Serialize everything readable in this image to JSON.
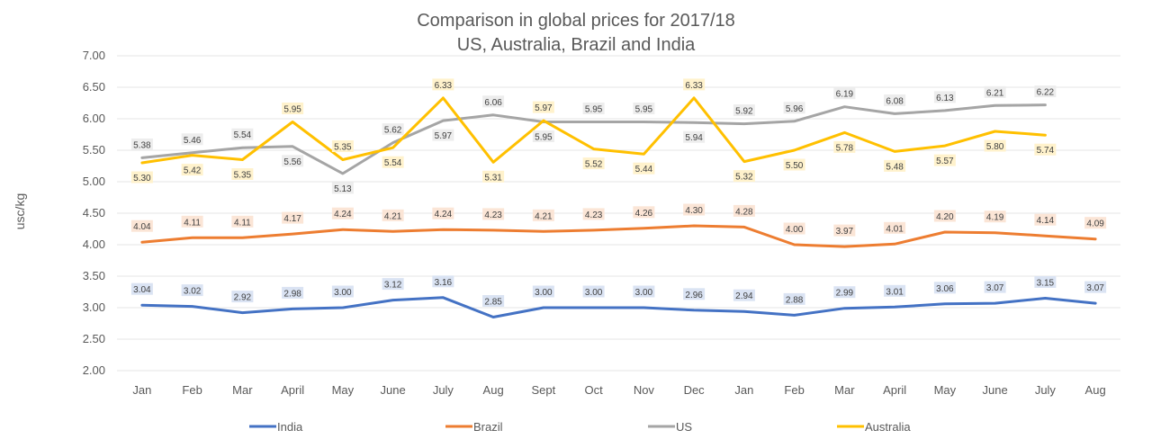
{
  "chart_data": {
    "type": "line",
    "title": "Comparison in global prices for 2017/18",
    "subtitle": "US, Australia, Brazil and India",
    "xlabel": "",
    "ylabel": "usc/kg",
    "ylim": [
      2.0,
      7.0
    ],
    "yticks": [
      "2.00",
      "2.50",
      "3.00",
      "3.50",
      "4.00",
      "4.50",
      "5.00",
      "5.50",
      "6.00",
      "6.50",
      "7.00"
    ],
    "grid": true,
    "legend_position": "bottom",
    "categories": [
      "Jan",
      "Feb",
      "Mar",
      "April",
      "May",
      "June",
      "July",
      "Aug",
      "Sept",
      "Oct",
      "Nov",
      "Dec",
      "Jan",
      "Feb",
      "Mar",
      "April",
      "May",
      "June",
      "July",
      "Aug"
    ],
    "series": [
      {
        "name": "India",
        "color": "#4472C4",
        "label_bg": "#dae3f3",
        "values": [
          3.04,
          3.02,
          2.92,
          2.98,
          3.0,
          3.12,
          3.16,
          2.85,
          3.0,
          3.0,
          3.0,
          2.96,
          2.94,
          2.88,
          2.99,
          3.01,
          3.06,
          3.07,
          3.15,
          3.07
        ],
        "labels": [
          "3.04",
          "3.02",
          "2.92",
          "2.98",
          "3.00",
          "3.12",
          "3.16",
          "2.85",
          "3.00",
          "3.00",
          "3.00",
          "2.96",
          "2.94",
          "2.88",
          "2.99",
          "3.01",
          "3.06",
          "3.07",
          "3.15",
          "3.07"
        ]
      },
      {
        "name": "Brazil",
        "color": "#ED7D31",
        "label_bg": "#fbe5d6",
        "values": [
          4.04,
          4.11,
          4.11,
          4.17,
          4.24,
          4.21,
          4.24,
          4.23,
          4.21,
          4.23,
          4.26,
          4.3,
          4.28,
          4.0,
          3.97,
          4.01,
          4.2,
          4.19,
          4.14,
          4.09
        ],
        "labels": [
          "4.04",
          "4.11",
          "4.11",
          "4.17",
          "4.24",
          "4.21",
          "4.24",
          "4.23",
          "4.21",
          "4.23",
          "4.26",
          "4.30",
          "4.28",
          "4.00",
          "3.97",
          "4.01",
          "4.20",
          "4.19",
          "4.14",
          "4.09"
        ]
      },
      {
        "name": "US",
        "color": "#A5A5A5",
        "label_bg": "#ededed",
        "values": [
          5.38,
          5.46,
          5.54,
          5.56,
          5.13,
          5.62,
          5.97,
          6.06,
          5.95,
          5.95,
          5.95,
          5.94,
          5.92,
          5.96,
          6.19,
          6.08,
          6.13,
          6.21,
          6.22,
          null
        ],
        "labels": [
          "5.38",
          "5.46",
          "5.54",
          "5.56",
          "5.13",
          "5.62",
          "5.97",
          "6.06",
          "5.95",
          "5.95",
          "5.95",
          "5.94",
          "5.92",
          "5.96",
          "6.19",
          "6.08",
          "6.13",
          "6.21",
          "6.22",
          null
        ]
      },
      {
        "name": "Australia",
        "color": "#FFC000",
        "label_bg": "#fff2cc",
        "values": [
          5.3,
          5.42,
          5.35,
          5.95,
          5.35,
          5.54,
          6.33,
          5.31,
          5.97,
          5.52,
          5.44,
          6.33,
          5.32,
          5.5,
          5.78,
          5.48,
          5.57,
          5.8,
          5.74,
          null
        ],
        "labels": [
          "5.30",
          "5.42",
          "5.35",
          "5.95",
          "5.35",
          "5.54",
          "6.33",
          "5.31",
          "5.97",
          "5.52",
          "5.44",
          "6.33",
          "5.32",
          "5.50",
          "5.78",
          "5.48",
          "5.57",
          "5.80",
          "5.74",
          null
        ]
      }
    ]
  }
}
